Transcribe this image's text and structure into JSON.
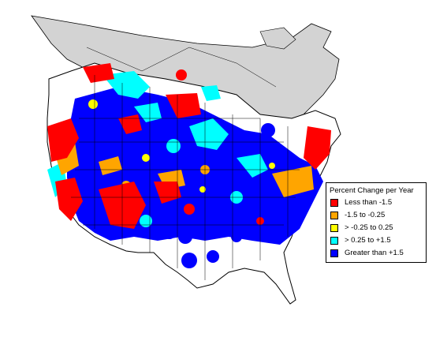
{
  "legend": {
    "title": "Percent Change per Year",
    "items": [
      {
        "label": "Less than -1.5",
        "color": "#ff0000"
      },
      {
        "label": "-1.5 to -0.25",
        "color": "#ffa500"
      },
      {
        "label": "> -0.25 to 0.25",
        "color": "#ffff00"
      },
      {
        "label": "> 0.25 to +1.5",
        "color": "#00ffff"
      },
      {
        "label": "Greater than +1.5",
        "color": "#0000ff"
      }
    ]
  },
  "colors": {
    "no_data_region": "#d3d3d3",
    "outline": "#000000",
    "background": "#ffffff"
  }
}
